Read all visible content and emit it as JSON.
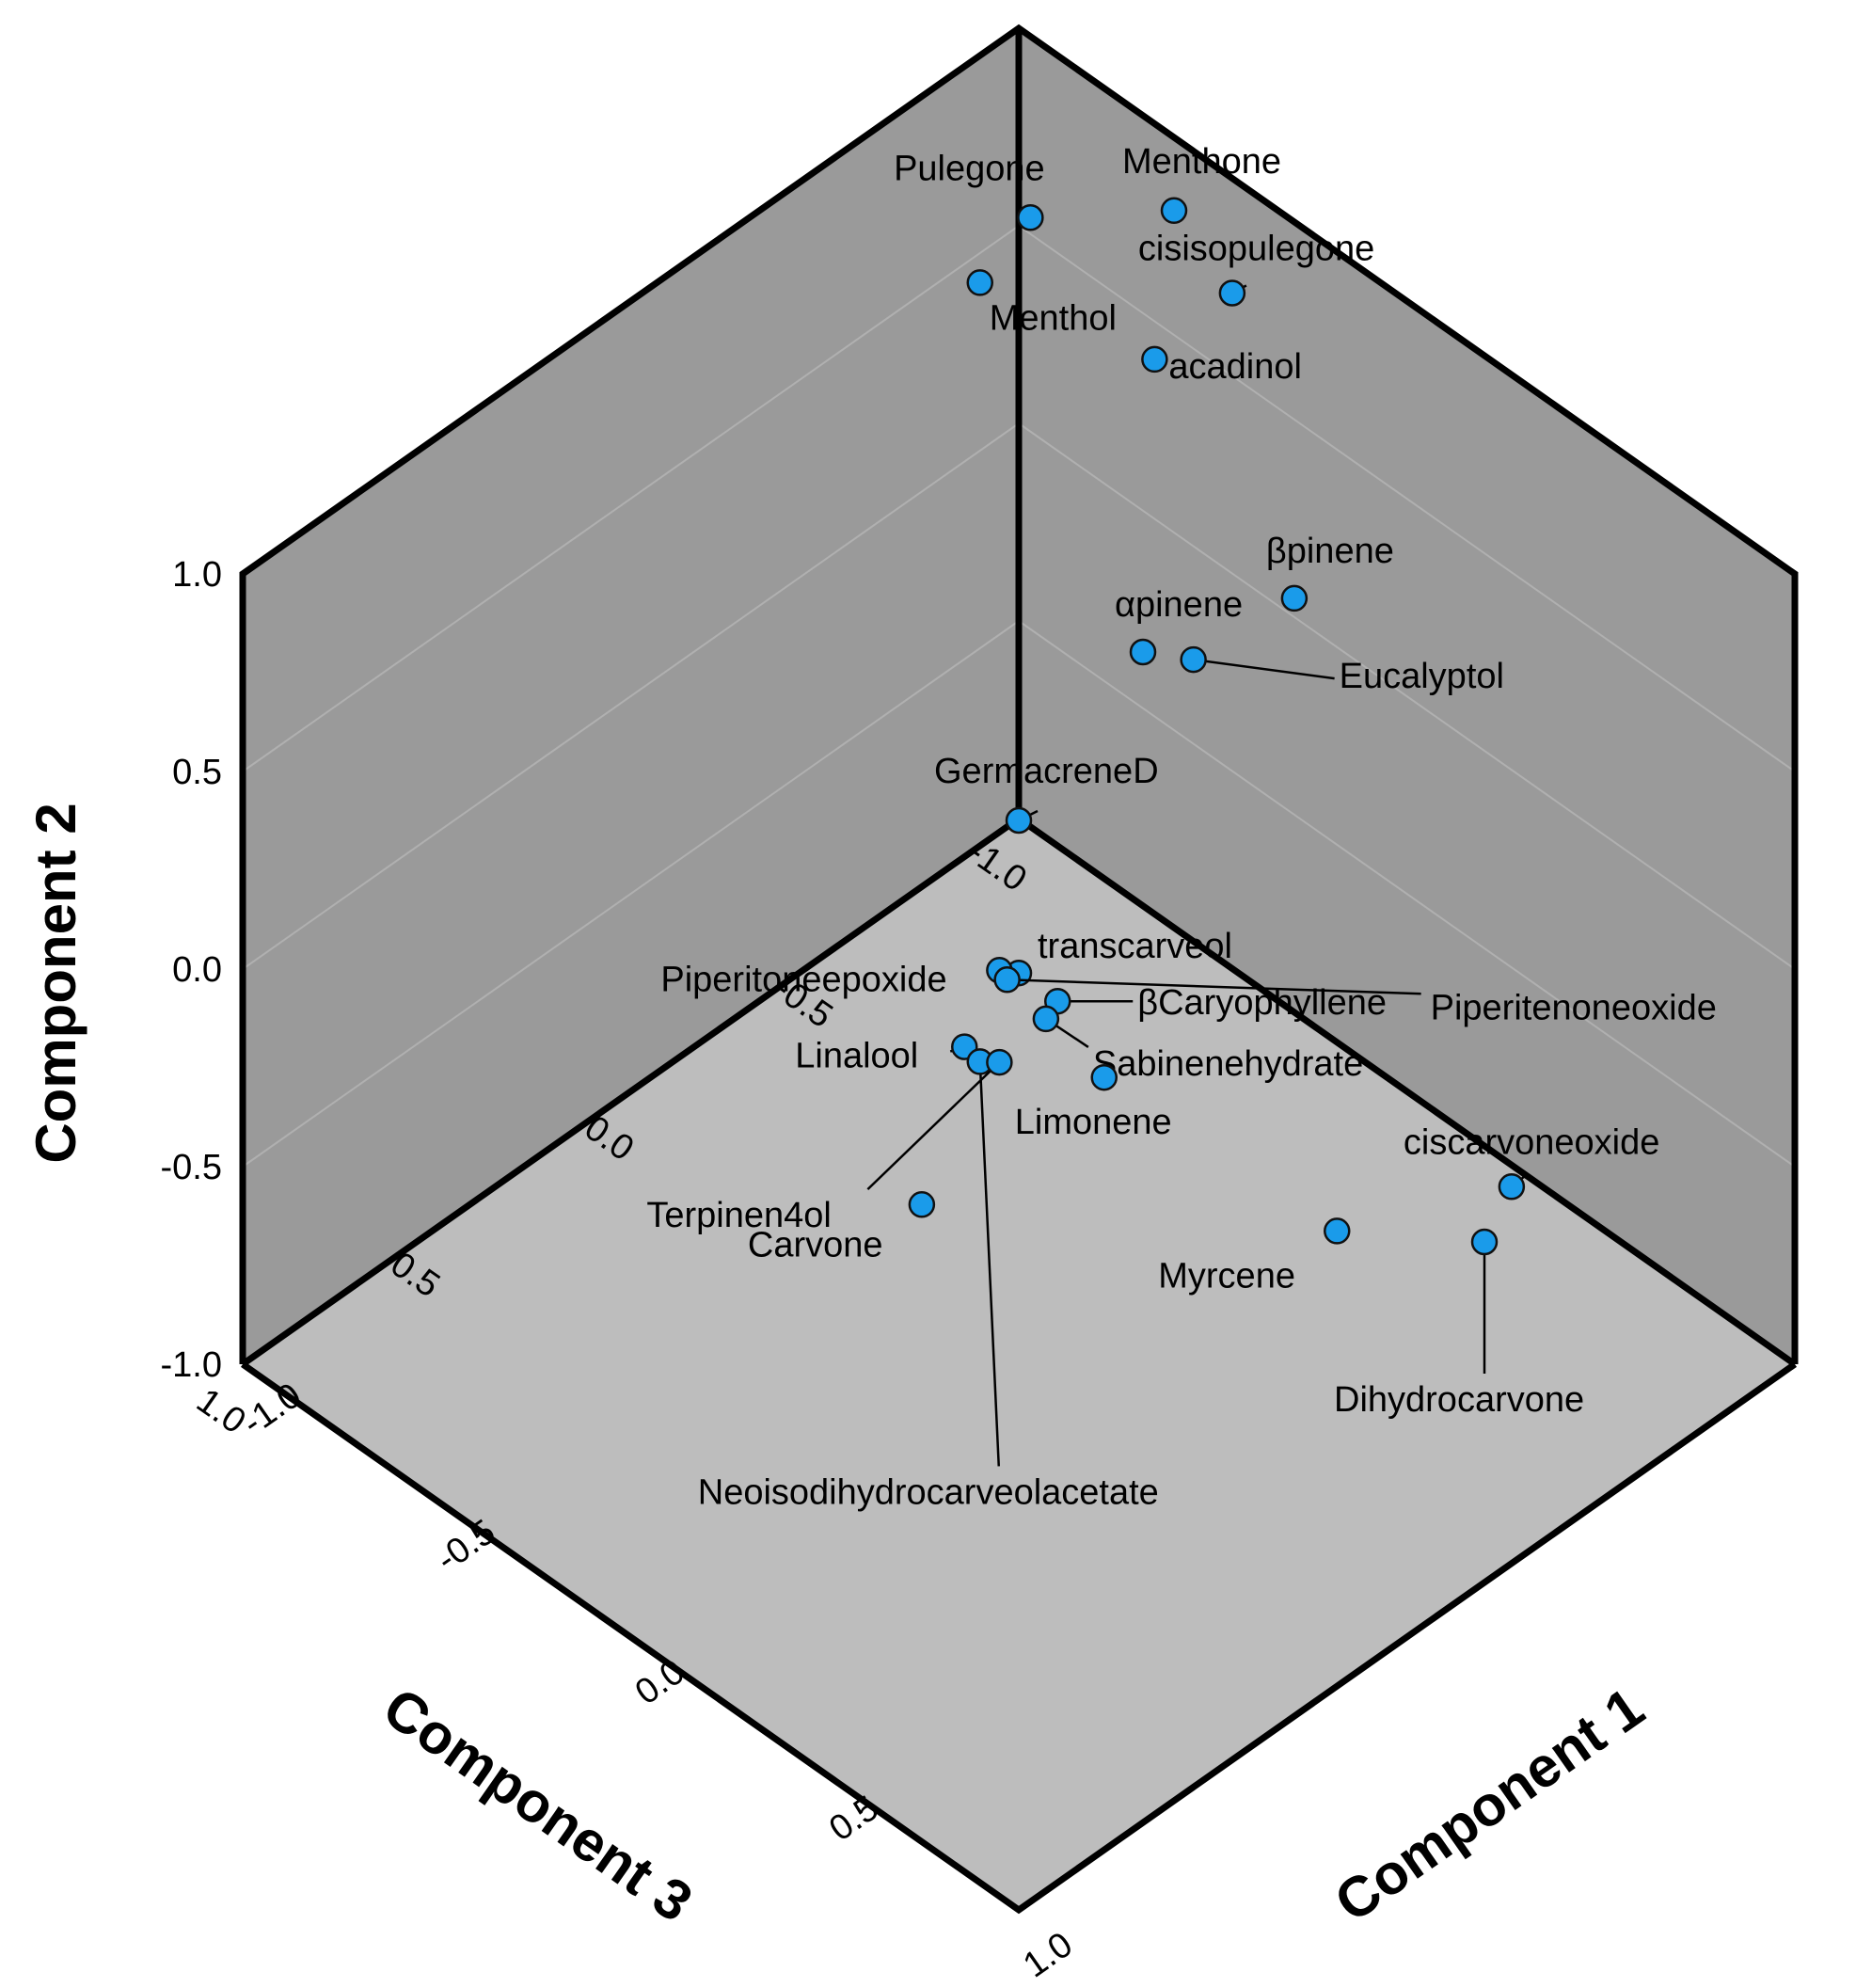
{
  "chart_data": {
    "type": "scatter",
    "title": "",
    "axes": {
      "component1": {
        "label": "Component 1",
        "range": [
          -1.0,
          1.0
        ],
        "ticks": [
          -1.0,
          -0.5,
          0.0,
          0.5,
          1.0
        ],
        "tick_labels": [
          "-1.0",
          "-0.5",
          "0.0",
          "0.5",
          "1.0"
        ]
      },
      "component2": {
        "label": "Component 2",
        "range": [
          -1.0,
          1.0
        ],
        "ticks": [
          -1.0,
          -0.5,
          0.0,
          0.5,
          1.0
        ],
        "tick_labels": [
          "-1.0",
          "-0.5",
          "0.0",
          "0.5",
          "1.0"
        ]
      },
      "component3": {
        "label": "Component 3",
        "range": [
          -1.0,
          1.0
        ],
        "ticks": [
          -1.0,
          -0.5,
          0.0,
          0.5,
          1.0
        ],
        "tick_labels": [
          "-1.0",
          "-0.5",
          "0.0",
          "0.5",
          "1.0"
        ]
      }
    },
    "series": [
      {
        "name": "Pulegone",
        "c1": -0.58,
        "c2": 1.08,
        "c3": -0.61
      },
      {
        "name": "Menthol",
        "c1": -0.62,
        "c2": 0.95,
        "c3": -0.52
      },
      {
        "name": "Menthone",
        "c1": -0.35,
        "c2": 1.16,
        "c3": -0.75
      },
      {
        "name": "cisisopulegone",
        "c1": -0.37,
        "c2": 0.82,
        "c3": -0.92
      },
      {
        "name": "acadinol",
        "c1": -0.45,
        "c2": 0.68,
        "c3": -0.8
      },
      {
        "name": "αpinene",
        "c1": -0.24,
        "c2": 0.25,
        "c3": -0.56
      },
      {
        "name": "βpinene",
        "c1": -0.1,
        "c2": 0.31,
        "c3": -0.81
      },
      {
        "name": "Eucalyptol",
        "c1": -0.19,
        "c2": 0.21,
        "c3": -0.64
      },
      {
        "name": "GermacreneD",
        "c1": -0.2,
        "c2": 0.1,
        "c3": -0.2
      },
      {
        "name": "transcarveol",
        "c1": 0.0,
        "c2": -0.01,
        "c3": 0.0
      },
      {
        "name": "Piperitoneepoxide",
        "c1": -0.03,
        "c2": -0.01,
        "c3": 0.02
      },
      {
        "name": "Piperitenoneoxide",
        "c1": -0.01,
        "c2": -0.02,
        "c3": 0.02
      },
      {
        "name": "βCaryophyllene",
        "c1": 0.08,
        "c2": -0.04,
        "c3": -0.02
      },
      {
        "name": "Sabinenehydrate",
        "c1": 0.09,
        "c2": -0.05,
        "c3": 0.02
      },
      {
        "name": "Linalool",
        "c1": 0.0,
        "c2": -0.1,
        "c3": 0.14
      },
      {
        "name": "Neoisodihydrocarveolacetate",
        "c1": 0.04,
        "c2": -0.11,
        "c3": 0.14
      },
      {
        "name": "Terpinen4ol",
        "c1": 0.03,
        "c2": -0.16,
        "c3": 0.08
      },
      {
        "name": "Limonene",
        "c1": 0.2,
        "c2": -0.15,
        "c3": -0.02
      },
      {
        "name": "Carvone",
        "c1": 0.14,
        "c2": -0.23,
        "c3": 0.39
      },
      {
        "name": "Myrcene",
        "c1": 0.68,
        "c2": -0.29,
        "c3": -0.14
      },
      {
        "name": "Dihydrocarvone",
        "c1": 0.89,
        "c2": -0.29,
        "c3": -0.31
      },
      {
        "name": "ciscarvoneoxide",
        "c1": 0.86,
        "c2": -0.24,
        "c3": -0.41
      }
    ]
  }
}
